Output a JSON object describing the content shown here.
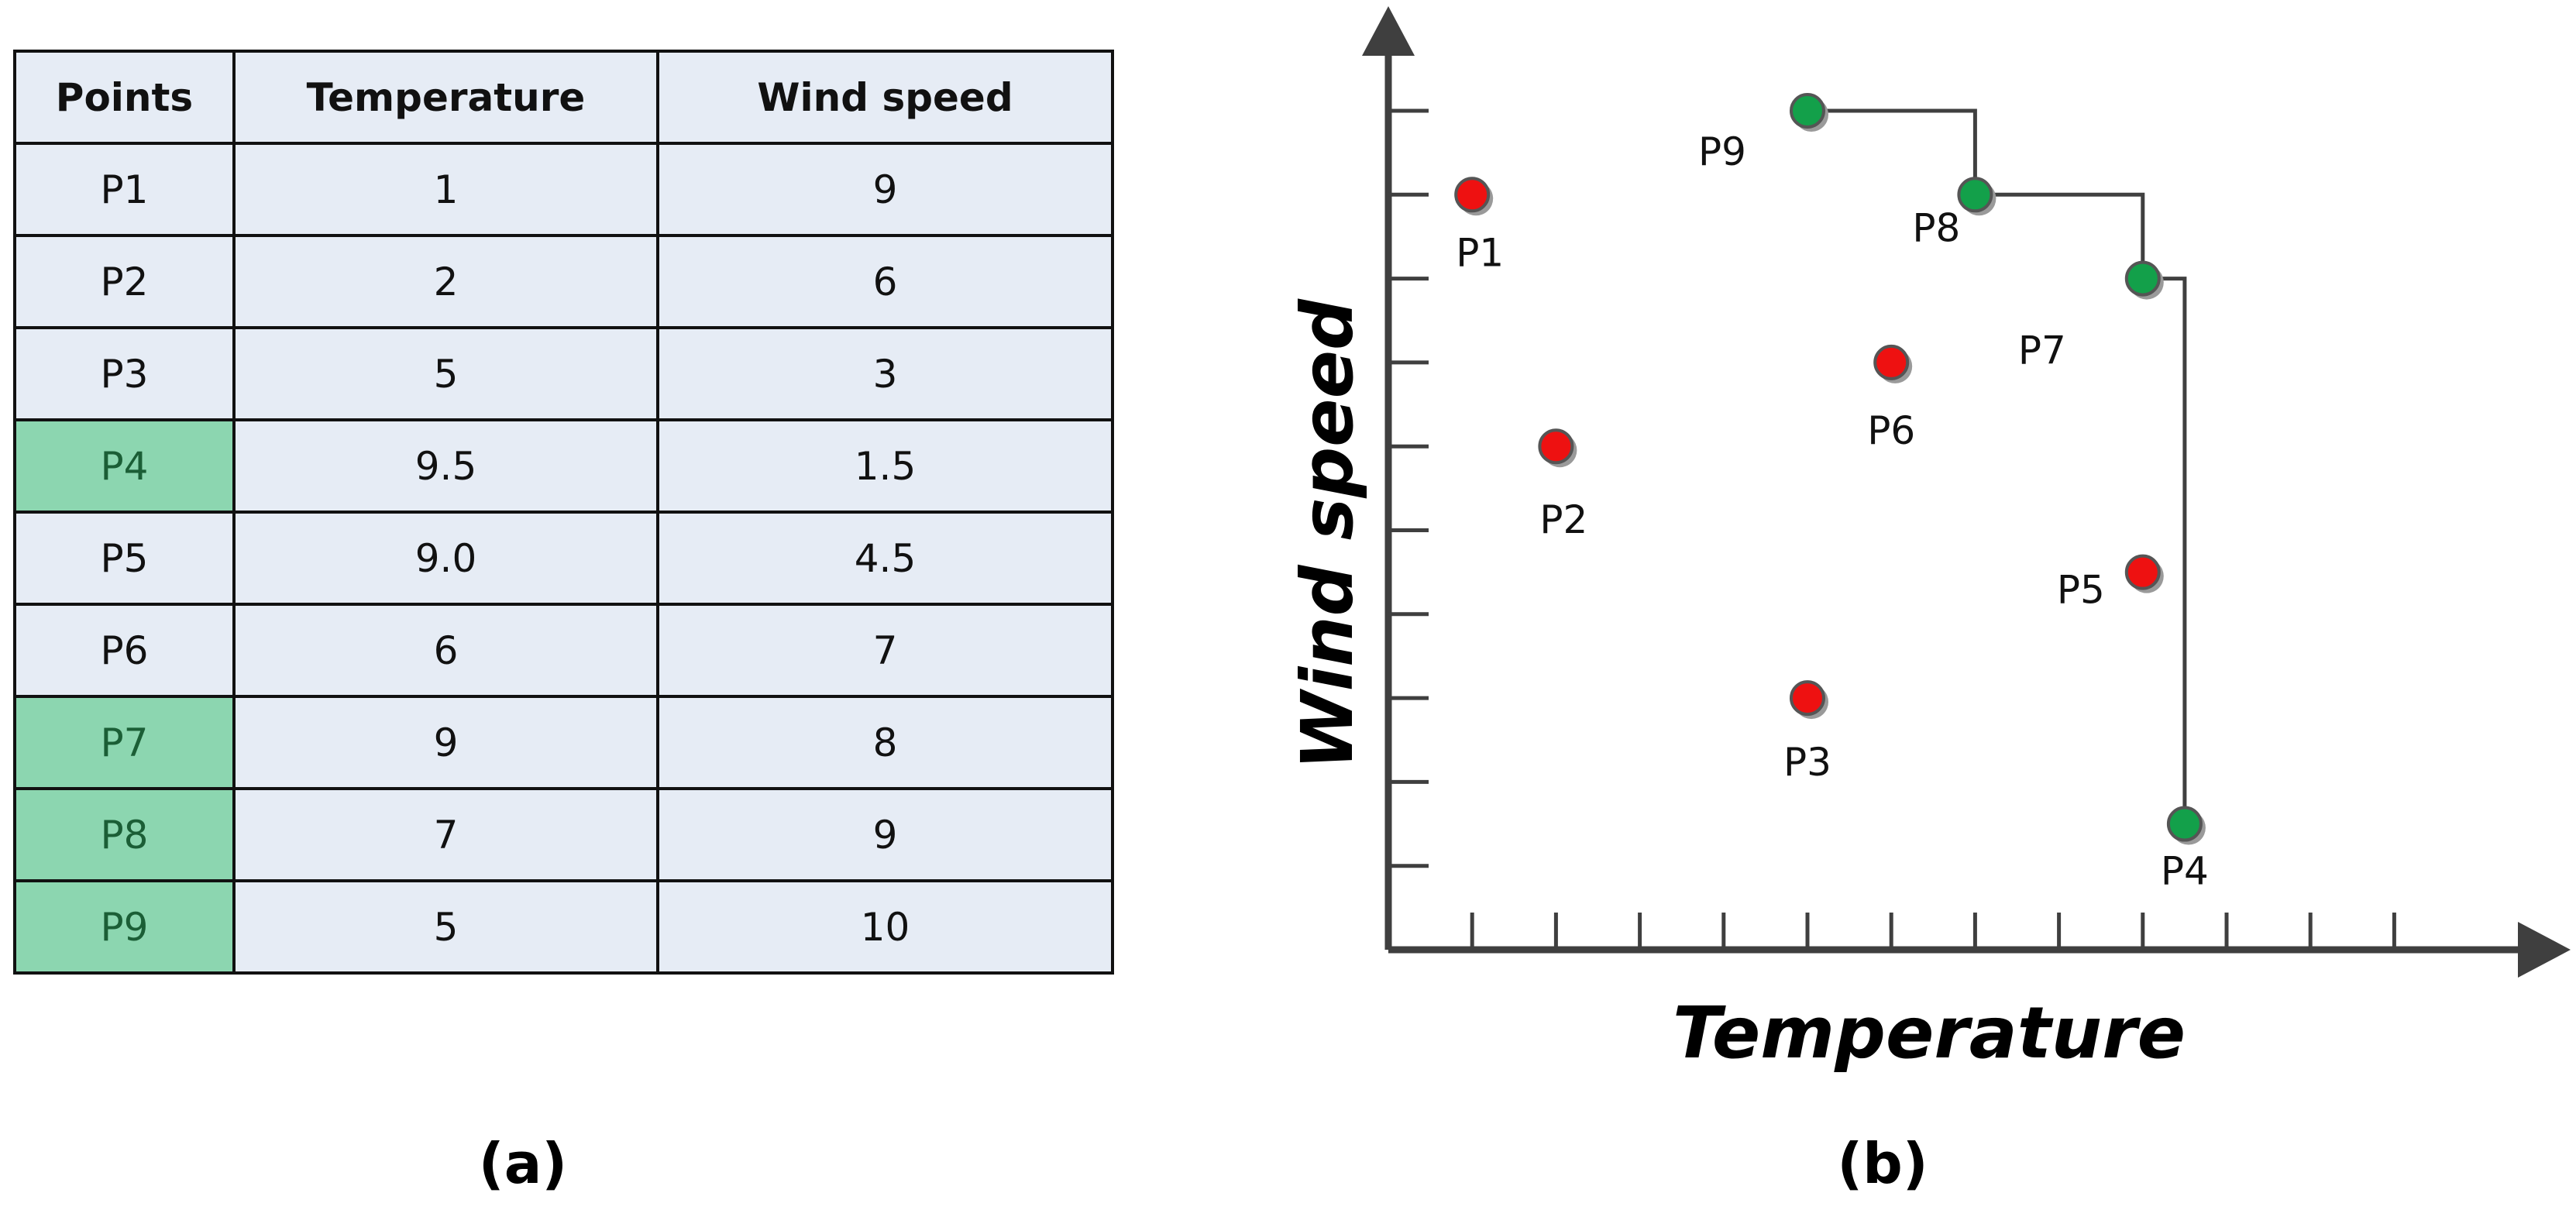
{
  "table": {
    "headers": [
      "Points",
      "Temperature",
      "Wind speed"
    ],
    "rows": [
      {
        "point": "P1",
        "temperature": "1",
        "wind_speed": "9",
        "pareto": false
      },
      {
        "point": "P2",
        "temperature": "2",
        "wind_speed": "6",
        "pareto": false
      },
      {
        "point": "P3",
        "temperature": "5",
        "wind_speed": "3",
        "pareto": false
      },
      {
        "point": "P4",
        "temperature": "9.5",
        "wind_speed": "1.5",
        "pareto": true
      },
      {
        "point": "P5",
        "temperature": "9.0",
        "wind_speed": "4.5",
        "pareto": false
      },
      {
        "point": "P6",
        "temperature": "6",
        "wind_speed": "7",
        "pareto": false
      },
      {
        "point": "P7",
        "temperature": "9",
        "wind_speed": "8",
        "pareto": true
      },
      {
        "point": "P8",
        "temperature": "7",
        "wind_speed": "9",
        "pareto": true
      },
      {
        "point": "P9",
        "temperature": "5",
        "wind_speed": "10",
        "pareto": true
      }
    ]
  },
  "captions": {
    "a": "(a)",
    "b": "(b)"
  },
  "colors": {
    "dominated": "#ee1111",
    "pareto": "#13a04a",
    "pareto_cell": "#8cd6b0",
    "cell": "#e6ecf5",
    "axis": "#3f3f3f"
  },
  "chart_data": {
    "type": "scatter",
    "xlabel": "Temperature",
    "ylabel": "Wind speed",
    "xlim": [
      0,
      13
    ],
    "ylim": [
      0,
      10
    ],
    "x_ticks": [
      1,
      2,
      3,
      4,
      5,
      6,
      7,
      8,
      9,
      10,
      11,
      12
    ],
    "y_ticks": [
      1,
      2,
      3,
      4,
      5,
      6,
      7,
      8,
      9,
      10
    ],
    "tick_labels_shown": false,
    "grid": false,
    "points": [
      {
        "label": "P1",
        "x": 1,
        "y": 9,
        "pareto": false
      },
      {
        "label": "P2",
        "x": 2,
        "y": 6,
        "pareto": false
      },
      {
        "label": "P3",
        "x": 5,
        "y": 3,
        "pareto": false
      },
      {
        "label": "P4",
        "x": 9.5,
        "y": 1.5,
        "pareto": true
      },
      {
        "label": "P5",
        "x": 9.0,
        "y": 4.5,
        "pareto": false
      },
      {
        "label": "P6",
        "x": 6,
        "y": 7,
        "pareto": false
      },
      {
        "label": "P7",
        "x": 9,
        "y": 8,
        "pareto": true
      },
      {
        "label": "P8",
        "x": 7,
        "y": 9,
        "pareto": true
      },
      {
        "label": "P9",
        "x": 5,
        "y": 10,
        "pareto": true
      }
    ],
    "pareto_front": [
      "P9",
      "P8",
      "P7",
      "P4"
    ],
    "pareto_front_style": "step"
  }
}
